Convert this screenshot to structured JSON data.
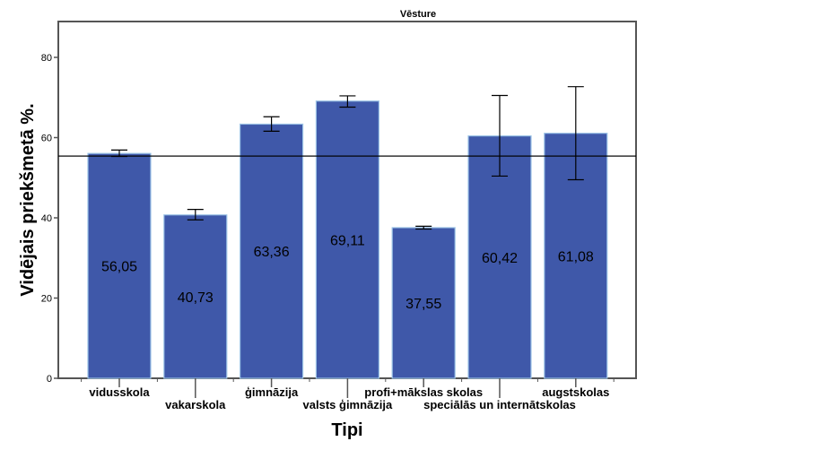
{
  "chart_data": {
    "type": "bar",
    "title": "Vēsture",
    "xlabel": "Tipi",
    "ylabel": "Vidējais priekšmetā %.",
    "ylim": [
      0,
      86
    ],
    "yticks": [
      0,
      20,
      40,
      60,
      80
    ],
    "grid": false,
    "legend": "none",
    "categories": [
      "vidusskola",
      "vakarskola",
      "ģimnāzija",
      "valsts ģimnāzija",
      "profi+mākslas skolas",
      "speciālās un internātskolas",
      "augstskolas"
    ],
    "values": [
      56.05,
      40.73,
      63.36,
      69.11,
      37.55,
      60.42,
      61.08
    ],
    "value_labels": [
      "56,05",
      "40,73",
      "63,36",
      "69,11",
      "37,55",
      "60,42",
      "61,08"
    ],
    "error_bars": [
      {
        "low": 55.3,
        "high": 56.9
      },
      {
        "low": 39.5,
        "high": 42.1
      },
      {
        "low": 61.6,
        "high": 65.2
      },
      {
        "low": 67.6,
        "high": 70.4
      },
      {
        "low": 37.2,
        "high": 37.9
      },
      {
        "low": 50.4,
        "high": 70.5
      },
      {
        "low": 49.5,
        "high": 72.7
      }
    ],
    "reference_line": 55.4,
    "colors": {
      "bar": "#3f58a9",
      "bar_edge": "#9cc3e6",
      "error": "#000000",
      "reference": "#000000",
      "frame": "#555555"
    }
  }
}
